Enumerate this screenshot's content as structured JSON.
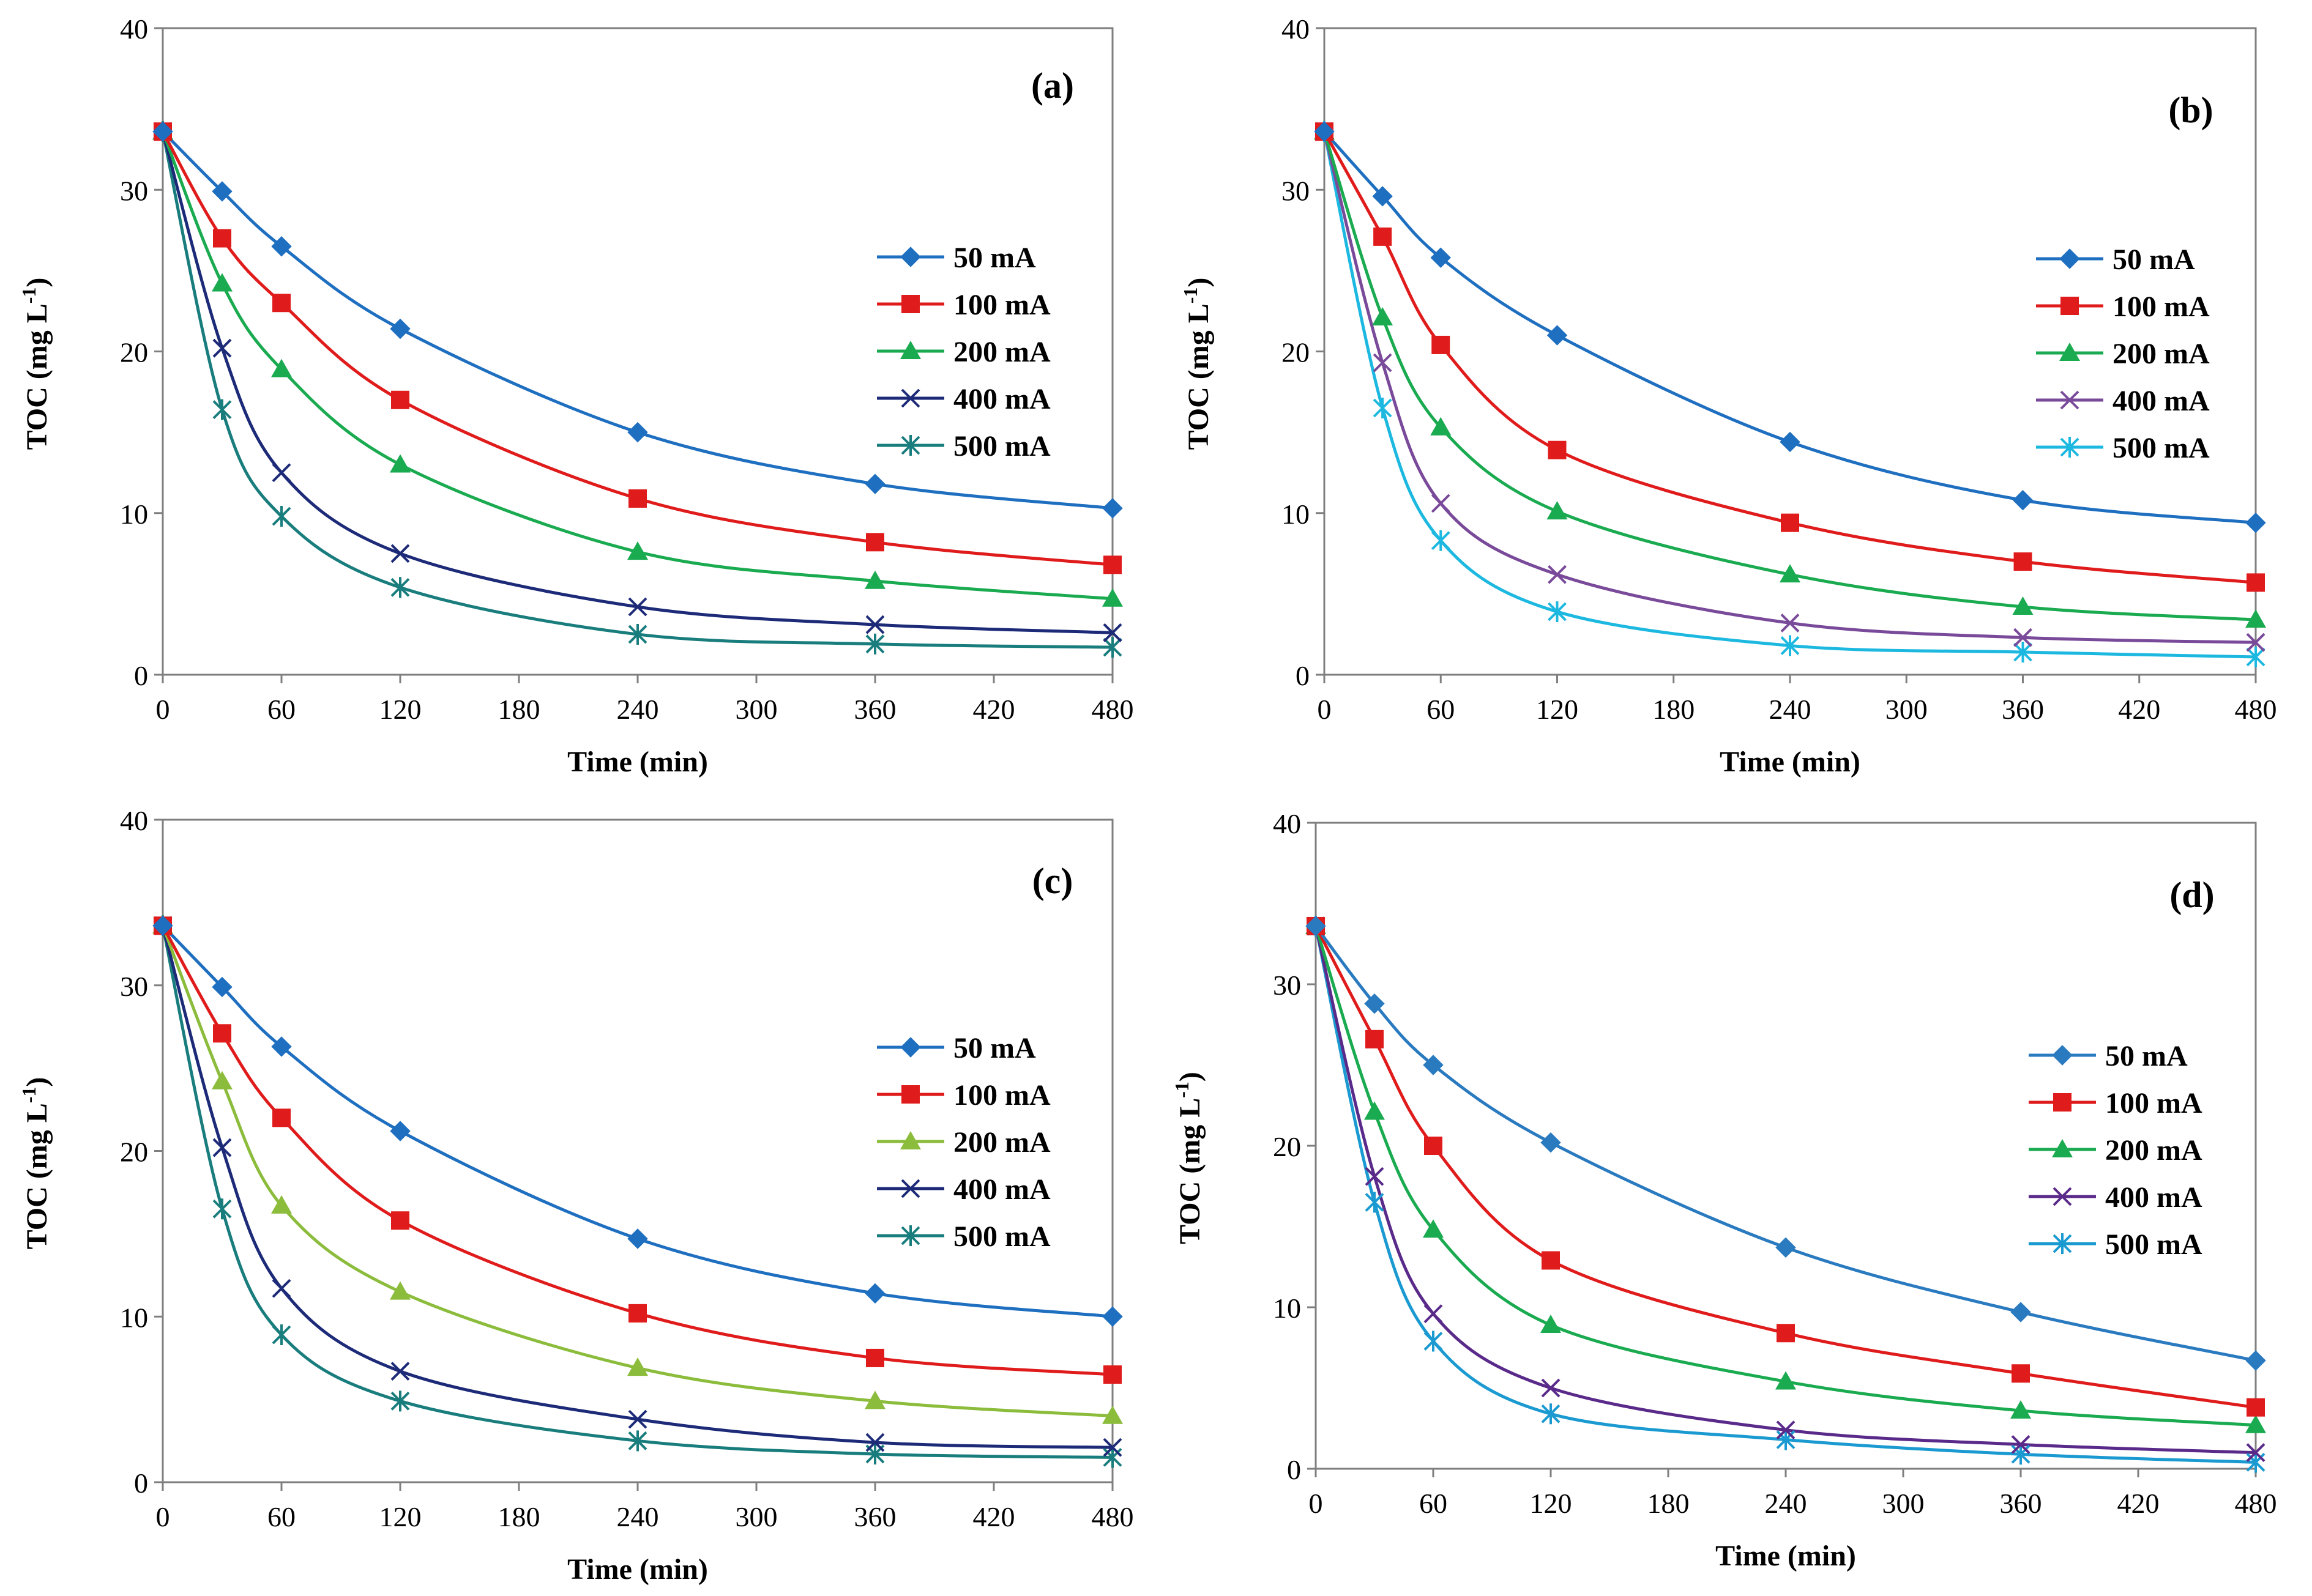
{
  "figure": {
    "legend_labels": [
      "50 mA",
      "100 mA",
      "200 mA",
      "400 mA",
      "500 mA"
    ]
  },
  "chart_data": [
    {
      "type": "line",
      "panel_label": "(a)",
      "xlabel": "Time (min)",
      "ylabel": "TOC (mg L",
      "ylabel_sup": "-1",
      "ylabel_end": ")",
      "xlim": [
        0,
        480
      ],
      "ylim": [
        0,
        40
      ],
      "xticks": [
        0,
        60,
        120,
        180,
        240,
        300,
        360,
        420,
        480
      ],
      "yticks": [
        0,
        10,
        20,
        30,
        40
      ],
      "x": [
        0,
        30,
        60,
        120,
        240,
        360,
        480
      ],
      "series": [
        {
          "name": "50 mA",
          "marker": "diamond",
          "color": "#1f6fc0",
          "values": [
            33.6,
            29.9,
            26.5,
            21.4,
            15.0,
            11.8,
            10.3
          ]
        },
        {
          "name": "100 mA",
          "marker": "square",
          "color": "#e01b1b",
          "values": [
            33.6,
            27.0,
            23.0,
            17.0,
            10.9,
            8.2,
            6.8
          ]
        },
        {
          "name": "200 mA",
          "marker": "triangle",
          "color": "#1aaa50",
          "values": [
            33.6,
            24.2,
            18.9,
            13.0,
            7.6,
            5.8,
            4.7
          ]
        },
        {
          "name": "400 mA",
          "marker": "x",
          "color": "#1c2a78",
          "values": [
            33.6,
            20.2,
            12.5,
            7.5,
            4.2,
            3.1,
            2.6
          ]
        },
        {
          "name": "500 mA",
          "marker": "asterisk",
          "color": "#1a7d7d",
          "values": [
            33.6,
            16.4,
            9.8,
            5.4,
            2.5,
            1.9,
            1.7
          ]
        }
      ]
    },
    {
      "type": "line",
      "panel_label": "(b)",
      "xlabel": "Time (min)",
      "ylabel": "TOC (mg L",
      "ylabel_sup": "-1",
      "ylabel_end": ")",
      "xlim": [
        0,
        480
      ],
      "ylim": [
        0,
        40
      ],
      "xticks": [
        0,
        60,
        120,
        180,
        240,
        300,
        360,
        420,
        480
      ],
      "yticks": [
        0,
        10,
        20,
        30,
        40
      ],
      "x": [
        0,
        30,
        60,
        120,
        240,
        360,
        480
      ],
      "series": [
        {
          "name": "50 mA",
          "marker": "diamond",
          "color": "#1f6fc0",
          "values": [
            33.6,
            29.6,
            25.8,
            21.0,
            14.4,
            10.8,
            9.4
          ]
        },
        {
          "name": "100 mA",
          "marker": "square",
          "color": "#e01b1b",
          "values": [
            33.6,
            27.1,
            20.4,
            13.9,
            9.4,
            7.0,
            5.7
          ]
        },
        {
          "name": "200 mA",
          "marker": "triangle",
          "color": "#1aaa50",
          "values": [
            33.6,
            22.1,
            15.3,
            10.1,
            6.2,
            4.2,
            3.4
          ]
        },
        {
          "name": "400 mA",
          "marker": "x",
          "color": "#7a4a9a",
          "values": [
            33.6,
            19.3,
            10.6,
            6.2,
            3.2,
            2.3,
            2.0
          ]
        },
        {
          "name": "500 mA",
          "marker": "asterisk",
          "color": "#1cb8e0",
          "values": [
            33.6,
            16.5,
            8.3,
            3.9,
            1.8,
            1.4,
            1.1
          ]
        }
      ]
    },
    {
      "type": "line",
      "panel_label": "(c)",
      "xlabel": "Time (min)",
      "ylabel": "TOC (mg L",
      "ylabel_sup": "-1",
      "ylabel_end": ")",
      "xlim": [
        0,
        480
      ],
      "ylim": [
        0,
        40
      ],
      "xticks": [
        0,
        60,
        120,
        180,
        240,
        300,
        360,
        420,
        480
      ],
      "yticks": [
        0,
        10,
        20,
        30,
        40
      ],
      "x": [
        0,
        30,
        60,
        120,
        240,
        360,
        480
      ],
      "series": [
        {
          "name": "50 mA",
          "marker": "diamond",
          "color": "#1f6fc0",
          "values": [
            33.6,
            29.9,
            26.3,
            21.2,
            14.7,
            11.4,
            10.0
          ]
        },
        {
          "name": "100 mA",
          "marker": "square",
          "color": "#e01b1b",
          "values": [
            33.6,
            27.1,
            22.0,
            15.8,
            10.2,
            7.5,
            6.5
          ]
        },
        {
          "name": "200 mA",
          "marker": "triangle",
          "color": "#8cbc3c",
          "values": [
            33.6,
            24.2,
            16.7,
            11.5,
            6.9,
            4.9,
            4.0
          ]
        },
        {
          "name": "400 mA",
          "marker": "x",
          "color": "#1c2a78",
          "values": [
            33.6,
            20.2,
            11.7,
            6.7,
            3.8,
            2.4,
            2.1
          ]
        },
        {
          "name": "500 mA",
          "marker": "asterisk",
          "color": "#1a7d7d",
          "values": [
            33.6,
            16.5,
            8.9,
            4.9,
            2.5,
            1.7,
            1.5
          ]
        }
      ]
    },
    {
      "type": "line",
      "panel_label": "(d)",
      "xlabel": "Time (min)",
      "ylabel": "TOC (mg L",
      "ylabel_sup": "-1",
      "ylabel_end": ")",
      "xlim": [
        0,
        480
      ],
      "ylim": [
        0,
        40
      ],
      "xticks": [
        0,
        60,
        120,
        180,
        240,
        300,
        360,
        420,
        480
      ],
      "yticks": [
        0,
        10,
        20,
        30,
        40
      ],
      "x": [
        0,
        30,
        60,
        120,
        240,
        360,
        480
      ],
      "series": [
        {
          "name": "50 mA",
          "marker": "diamond",
          "color": "#2a7ac0",
          "values": [
            33.6,
            28.8,
            25.0,
            20.2,
            13.7,
            9.7,
            6.7
          ]
        },
        {
          "name": "100 mA",
          "marker": "square",
          "color": "#e01b1b",
          "values": [
            33.6,
            26.6,
            20.0,
            12.9,
            8.4,
            5.9,
            3.8
          ]
        },
        {
          "name": "200 mA",
          "marker": "triangle",
          "color": "#1aaa50",
          "values": [
            33.6,
            22.1,
            14.8,
            8.9,
            5.4,
            3.6,
            2.7
          ]
        },
        {
          "name": "400 mA",
          "marker": "x",
          "color": "#5a2a8a",
          "values": [
            33.6,
            18.1,
            9.6,
            5.0,
            2.4,
            1.5,
            1.0
          ]
        },
        {
          "name": "500 mA",
          "marker": "asterisk",
          "color": "#1a9ad0",
          "values": [
            33.6,
            16.5,
            7.9,
            3.4,
            1.8,
            0.9,
            0.4
          ]
        }
      ]
    }
  ]
}
